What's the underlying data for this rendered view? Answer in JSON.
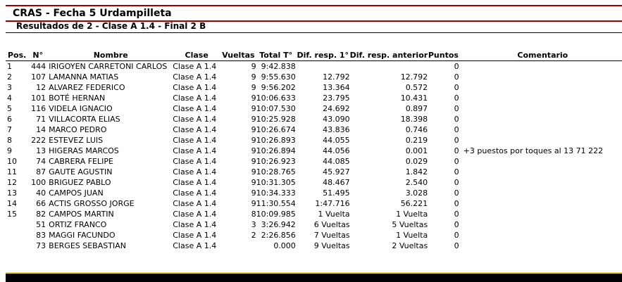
{
  "title": "CRAS - Fecha 5 Urdampilleta",
  "subtitle": "Resultados de 2 - Clase A 1.4 - Final 2 B",
  "colors": {
    "rule": "#a00000",
    "footer_bar": "#000000",
    "footer_accent": "#f2e000"
  },
  "columns": {
    "pos": "Pos.",
    "num": "N°",
    "name": "Nombre",
    "cls": "Clase",
    "laps": "Vueltas",
    "total": "Total T°",
    "dif1": "Dif. resp. 1°",
    "difa": "Dif. resp. anterior",
    "pts": "Puntos",
    "comment": "Comentario"
  },
  "rows": [
    {
      "pos": "1",
      "num": "444",
      "name": "IRIGOYEN CARRETONI CARLOS",
      "cls": "Clase A 1.4",
      "laps": "9",
      "total": "9:42.838",
      "dif1": "",
      "difa": "",
      "pts": "0",
      "comment": ""
    },
    {
      "pos": "2",
      "num": "107",
      "name": "LAMANNA MATIAS",
      "cls": "Clase A 1.4",
      "laps": "9",
      "total": "9:55.630",
      "dif1": "12.792",
      "difa": "12.792",
      "pts": "0",
      "comment": ""
    },
    {
      "pos": "3",
      "num": "12",
      "name": "ALVAREZ FEDERICO",
      "cls": "Clase A 1.4",
      "laps": "9",
      "total": "9:56.202",
      "dif1": "13.364",
      "difa": "0.572",
      "pts": "0",
      "comment": ""
    },
    {
      "pos": "4",
      "num": "101",
      "name": "BOTÉ HERNAN",
      "cls": "Clase A 1.4",
      "laps": "9",
      "total": "10:06.633",
      "dif1": "23.795",
      "difa": "10.431",
      "pts": "0",
      "comment": ""
    },
    {
      "pos": "5",
      "num": "116",
      "name": "VIDELA IGNACIO",
      "cls": "Clase A 1.4",
      "laps": "9",
      "total": "10:07.530",
      "dif1": "24.692",
      "difa": "0.897",
      "pts": "0",
      "comment": ""
    },
    {
      "pos": "6",
      "num": "71",
      "name": "VILLACORTA ELIAS",
      "cls": "Clase A 1.4",
      "laps": "9",
      "total": "10:25.928",
      "dif1": "43.090",
      "difa": "18.398",
      "pts": "0",
      "comment": ""
    },
    {
      "pos": "7",
      "num": "14",
      "name": "MARCO PEDRO",
      "cls": "Clase A 1.4",
      "laps": "9",
      "total": "10:26.674",
      "dif1": "43.836",
      "difa": "0.746",
      "pts": "0",
      "comment": ""
    },
    {
      "pos": "8",
      "num": "222",
      "name": "ESTEVEZ LUIS",
      "cls": "Clase A 1.4",
      "laps": "9",
      "total": "10:26.893",
      "dif1": "44.055",
      "difa": "0.219",
      "pts": "0",
      "comment": ""
    },
    {
      "pos": "9",
      "num": "13",
      "name": "HIGERAS MARCOS",
      "cls": "Clase A 1.4",
      "laps": "9",
      "total": "10:26.894",
      "dif1": "44.056",
      "difa": "0.001",
      "pts": "0",
      "comment": "+3 puestos por toques al 13 71 222"
    },
    {
      "pos": "10",
      "num": "74",
      "name": "CABRERA FELIPE",
      "cls": "Clase A 1.4",
      "laps": "9",
      "total": "10:26.923",
      "dif1": "44.085",
      "difa": "0.029",
      "pts": "0",
      "comment": ""
    },
    {
      "pos": "11",
      "num": "87",
      "name": "GAUTE AGUSTIN",
      "cls": "Clase A 1.4",
      "laps": "9",
      "total": "10:28.765",
      "dif1": "45.927",
      "difa": "1.842",
      "pts": "0",
      "comment": ""
    },
    {
      "pos": "12",
      "num": "100",
      "name": "BRIGUEZ PABLO",
      "cls": "Clase A 1.4",
      "laps": "9",
      "total": "10:31.305",
      "dif1": "48.467",
      "difa": "2.540",
      "pts": "0",
      "comment": ""
    },
    {
      "pos": "13",
      "num": "40",
      "name": "CAMPOS JUAN",
      "cls": "Clase A 1.4",
      "laps": "9",
      "total": "10:34.333",
      "dif1": "51.495",
      "difa": "3.028",
      "pts": "0",
      "comment": ""
    },
    {
      "pos": "14",
      "num": "66",
      "name": "ACTIS GROSSO JORGE",
      "cls": "Clase A 1.4",
      "laps": "9",
      "total": "11:30.554",
      "dif1": "1:47.716",
      "difa": "56.221",
      "pts": "0",
      "comment": ""
    },
    {
      "pos": "15",
      "num": "82",
      "name": "CAMPOS MARTIN",
      "cls": "Clase A 1.4",
      "laps": "8",
      "total": "10:09.985",
      "dif1": "1 Vuelta",
      "difa": "1 Vuelta",
      "pts": "0",
      "comment": ""
    },
    {
      "pos": "",
      "num": "51",
      "name": "ORTIZ FRANCO",
      "cls": "Clase A 1.4",
      "laps": "3",
      "total": "3:26.942",
      "dif1": "6 Vueltas",
      "difa": "5 Vueltas",
      "pts": "0",
      "comment": ""
    },
    {
      "pos": "",
      "num": "83",
      "name": "MAGGI FACUNDO",
      "cls": "Clase A 1.4",
      "laps": "2",
      "total": "2:26.856",
      "dif1": "7 Vueltas",
      "difa": "1 Vuelta",
      "pts": "0",
      "comment": ""
    },
    {
      "pos": "",
      "num": "73",
      "name": "BERGES SEBASTIAN",
      "cls": "Clase A 1.4",
      "laps": "",
      "total": "0.000",
      "dif1": "9 Vueltas",
      "difa": "2 Vueltas",
      "pts": "0",
      "comment": ""
    }
  ]
}
